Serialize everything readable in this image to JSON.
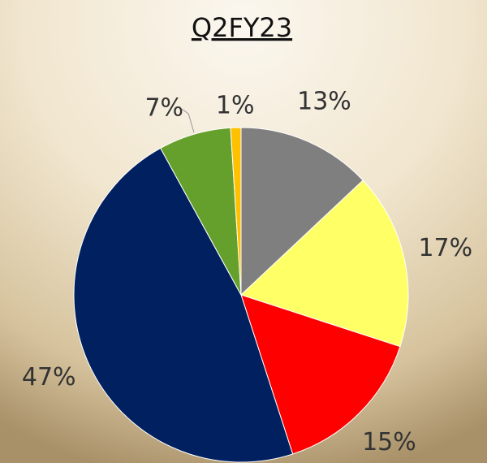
{
  "chart_data": {
    "type": "pie",
    "title": "Q2FY23",
    "categories": [
      null,
      null,
      null,
      null,
      null,
      null
    ],
    "values": [
      13,
      17,
      15,
      47,
      7,
      1
    ],
    "value_labels": [
      "13%",
      "17%",
      "15%",
      "47%",
      "7%",
      "1%"
    ],
    "colors": [
      "#7f7f7f",
      "#ffff66",
      "#ff0000",
      "#002060",
      "#66a02c",
      "#ffc000"
    ]
  }
}
